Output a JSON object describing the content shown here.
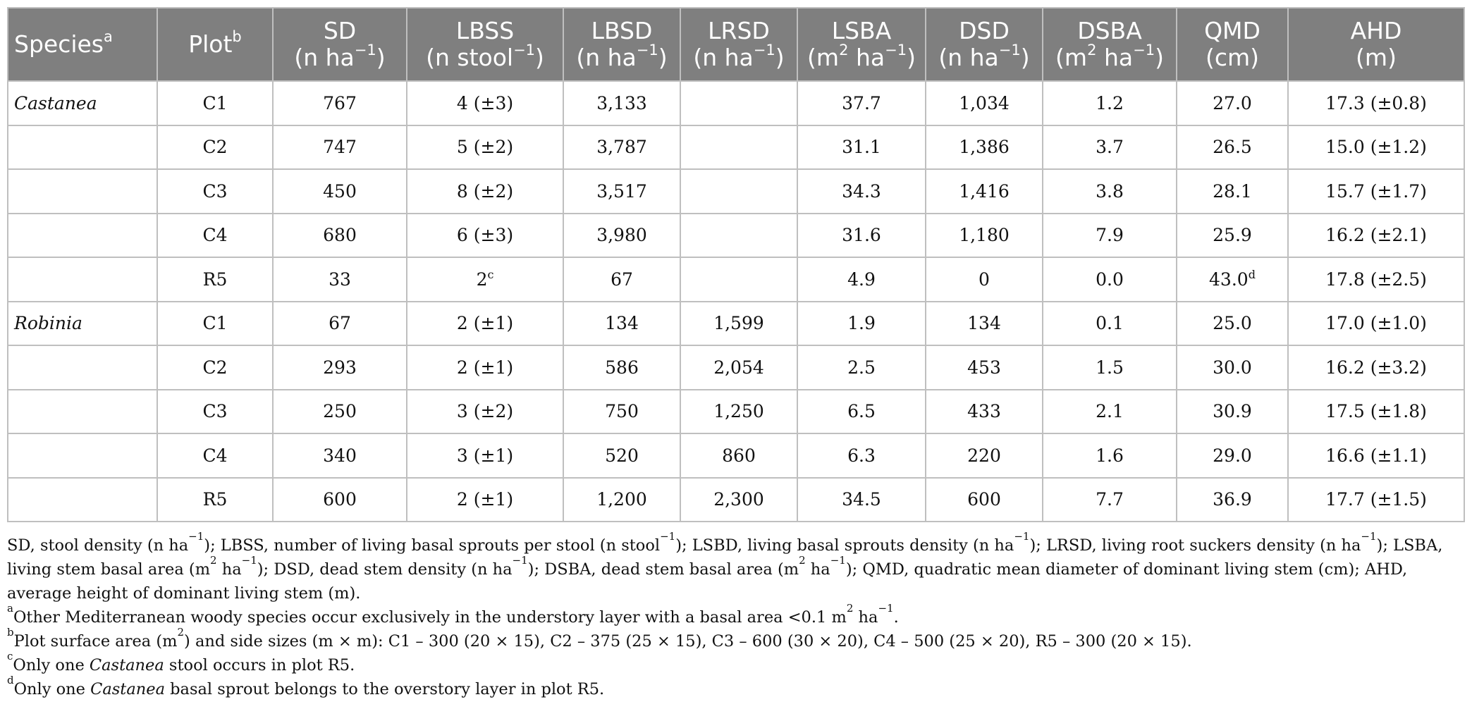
{
  "columns": [
    {
      "line1": "Species",
      "sup": "a",
      "line2": ""
    },
    {
      "line1": "Plot",
      "sup": "b",
      "line2": ""
    },
    {
      "line1": "SD",
      "line2": "(n ha",
      "exp": "−1",
      "after": ")"
    },
    {
      "line1": "LBSS",
      "line2": "(n stool",
      "exp": "−1",
      "after": ")"
    },
    {
      "line1": "LBSD",
      "line2": "(n ha",
      "exp": "−1",
      "after": ")"
    },
    {
      "line1": "LRSD",
      "line2": "(n ha",
      "exp": "−1",
      "after": ")"
    },
    {
      "line1": "LSBA",
      "line2": "(m",
      "exp2": "2",
      "mid": " ha",
      "exp": "−1",
      "after": ")"
    },
    {
      "line1": "DSD",
      "line2": "(n ha",
      "exp": "−1",
      "after": ")"
    },
    {
      "line1": "DSBA",
      "line2": "(m",
      "exp2": "2",
      "mid": " ha",
      "exp": "−1",
      "after": ")"
    },
    {
      "line1": "QMD",
      "line2": "(cm)"
    },
    {
      "line1": "AHD",
      "line2": "(m)"
    }
  ],
  "rows": [
    {
      "species": "Castanea",
      "plot": "C1",
      "sd": "767",
      "lbss": "4 (±3)",
      "lbsd": "3,133",
      "lrsd": "",
      "lsba": "37.7",
      "dsd": "1,034",
      "dsba": "1.2",
      "qmd": "27.0",
      "ahd": "17.3 (±0.8)"
    },
    {
      "species": "",
      "plot": "C2",
      "sd": "747",
      "lbss": "5 (±2)",
      "lbsd": "3,787",
      "lrsd": "",
      "lsba": "31.1",
      "dsd": "1,386",
      "dsba": "3.7",
      "qmd": "26.5",
      "ahd": "15.0 (±1.2)"
    },
    {
      "species": "",
      "plot": "C3",
      "sd": "450",
      "lbss": "8 (±2)",
      "lbsd": "3,517",
      "lrsd": "",
      "lsba": "34.3",
      "dsd": "1,416",
      "dsba": "3.8",
      "qmd": "28.1",
      "ahd": "15.7 (±1.7)"
    },
    {
      "species": "",
      "plot": "C4",
      "sd": "680",
      "lbss": "6 (±3)",
      "lbsd": "3,980",
      "lrsd": "",
      "lsba": "31.6",
      "dsd": "1,180",
      "dsba": "7.9",
      "qmd": "25.9",
      "ahd": "16.2 (±2.1)"
    },
    {
      "species": "",
      "plot": "R5",
      "sd": "33",
      "lbss": "2",
      "lbss_sup": "c",
      "lbsd": "67",
      "lrsd": "",
      "lsba": "4.9",
      "dsd": "0",
      "dsba": "0.0",
      "qmd": "43.0",
      "qmd_sup": "d",
      "ahd": "17.8 (±2.5)"
    },
    {
      "species": "Robinia",
      "plot": "C1",
      "sd": "67",
      "lbss": "2 (±1)",
      "lbsd": "134",
      "lrsd": "1,599",
      "lsba": "1.9",
      "dsd": "134",
      "dsba": "0.1",
      "qmd": "25.0",
      "ahd": "17.0 (±1.0)"
    },
    {
      "species": "",
      "plot": "C2",
      "sd": "293",
      "lbss": "2 (±1)",
      "lbsd": "586",
      "lrsd": "2,054",
      "lsba": "2.5",
      "dsd": "453",
      "dsba": "1.5",
      "qmd": "30.0",
      "ahd": "16.2 (±3.2)"
    },
    {
      "species": "",
      "plot": "C3",
      "sd": "250",
      "lbss": "3 (±2)",
      "lbsd": "750",
      "lrsd": "1,250",
      "lsba": "6.5",
      "dsd": "433",
      "dsba": "2.1",
      "qmd": "30.9",
      "ahd": "17.5 (±1.8)"
    },
    {
      "species": "",
      "plot": "C4",
      "sd": "340",
      "lbss": "3 (±1)",
      "lbsd": "520",
      "lrsd": "860",
      "lsba": "6.3",
      "dsd": "220",
      "dsba": "1.6",
      "qmd": "29.0",
      "ahd": "16.6 (±1.1)"
    },
    {
      "species": "",
      "plot": "R5",
      "sd": "600",
      "lbss": "2 (±1)",
      "lbsd": "1,200",
      "lrsd": "2,300",
      "lsba": "34.5",
      "dsd": "600",
      "dsba": "7.7",
      "qmd": "36.9",
      "ahd": "17.7 (±1.5)"
    }
  ],
  "notes": {
    "abbrev": [
      {
        "t": "SD, stool density (n ha"
      },
      {
        "sup": "−1"
      },
      {
        "t": "); LBSS, number of living basal sprouts per stool (n stool"
      },
      {
        "sup": "−1"
      },
      {
        "t": "); LSBD, living basal sprouts density (n ha"
      },
      {
        "sup": "−1"
      },
      {
        "t": "); LRSD, living root suckers density (n ha"
      },
      {
        "sup": "−1"
      },
      {
        "t": "); LSBA, living stem basal area (m"
      },
      {
        "sup": "2"
      },
      {
        "t": " ha"
      },
      {
        "sup": "−1"
      },
      {
        "t": "); DSD, dead stem density (n ha"
      },
      {
        "sup": "−1"
      },
      {
        "t": "); DSBA, dead stem basal area (m"
      },
      {
        "sup": "2"
      },
      {
        "t": " ha"
      },
      {
        "sup": "−1"
      },
      {
        "t": "); QMD, quadratic mean diameter of dominant living stem (cm); AHD, average height of dominant living stem (m)."
      }
    ],
    "a": [
      {
        "sup": "a"
      },
      {
        "t": "Other Mediterranean woody species occur exclusively in the understory layer with a basal area <0.1 m"
      },
      {
        "sup": "2"
      },
      {
        "t": " ha"
      },
      {
        "sup": "−1"
      },
      {
        "t": "."
      }
    ],
    "b": [
      {
        "sup": "b"
      },
      {
        "t": "Plot surface area (m"
      },
      {
        "sup": "2"
      },
      {
        "t": ") and side sizes (m × m): C1 – 300 (20 × 15), C2 – 375 (25 × 15), C3 – 600 (30 × 20), C4 – 500 (25 × 20), R5 – 300 (20 × 15)."
      }
    ],
    "c": [
      {
        "sup": "c"
      },
      {
        "t": "Only one "
      },
      {
        "i": "Castanea"
      },
      {
        "t": " stool occurs in plot R5."
      }
    ],
    "d": [
      {
        "sup": "d"
      },
      {
        "t": "Only one "
      },
      {
        "i": "Castanea"
      },
      {
        "t": " basal sprout belongs to the overstory layer in plot R5."
      }
    ]
  }
}
